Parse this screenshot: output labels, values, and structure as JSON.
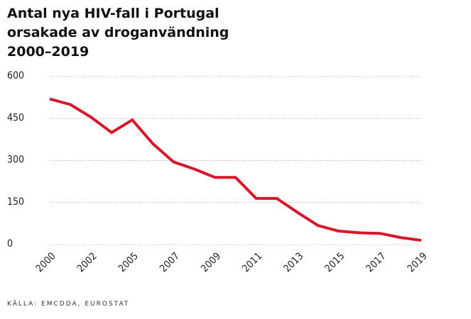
{
  "chart_data": {
    "type": "line",
    "title": "Antal nya HIV-fall i Portugal orsakade av droganvändning 2000–2019",
    "source": "KÄLLA: EMCDDA, EUROSTAT",
    "categories": [
      "2000",
      null,
      "2002",
      null,
      "2005",
      null,
      "2007",
      null,
      "2009",
      null,
      "2011",
      null,
      "2013",
      null,
      "2015",
      null,
      "2017",
      null,
      "2019"
    ],
    "series": [
      {
        "name": "HIV-fall",
        "color": "#d7182a",
        "values": [
          520,
          500,
          455,
          400,
          445,
          360,
          295,
          270,
          240,
          240,
          165,
          165,
          115,
          68,
          48,
          42,
          40,
          25,
          15
        ]
      }
    ],
    "ylim": [
      0,
      600
    ],
    "yticks": [
      0,
      150,
      300,
      450,
      600
    ],
    "grid": true
  }
}
